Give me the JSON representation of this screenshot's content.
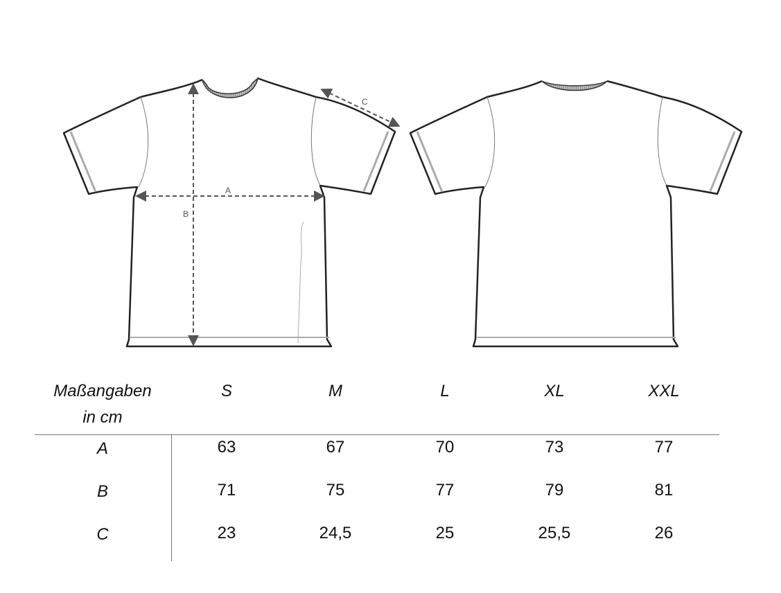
{
  "diagram": {
    "front_labels": {
      "a": "A",
      "b": "B",
      "c": "C"
    }
  },
  "table": {
    "header_label_line1": "Maßangaben",
    "header_label_line2": "in cm",
    "sizes": [
      "S",
      "M",
      "L",
      "XL",
      "XXL"
    ],
    "rows": [
      {
        "label": "A",
        "values": [
          "63",
          "67",
          "70",
          "73",
          "77"
        ]
      },
      {
        "label": "B",
        "values": [
          "71",
          "75",
          "77",
          "79",
          "81"
        ]
      },
      {
        "label": "C",
        "values": [
          "23",
          "24,5",
          "25",
          "25,5",
          "26"
        ]
      }
    ]
  }
}
